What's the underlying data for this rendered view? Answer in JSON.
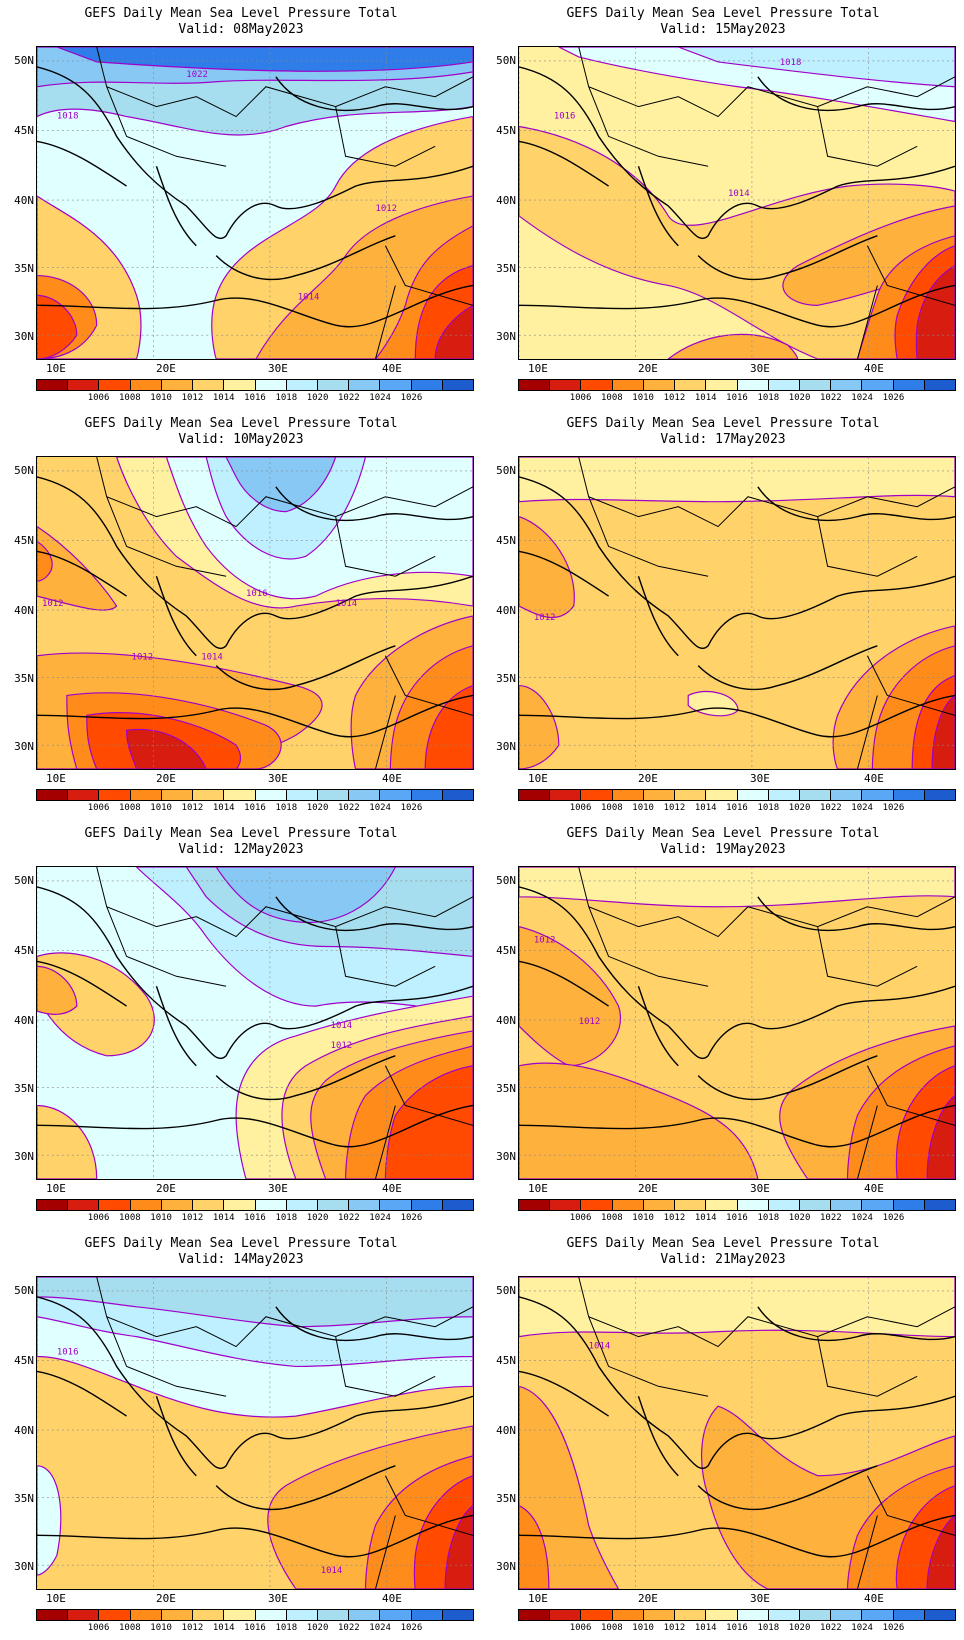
{
  "title_line1": "GEFS Daily Mean Sea Level Pressure Total",
  "panels": [
    {
      "valid": "Valid: 08May2023",
      "label_texts": [
        "1022",
        "1018",
        "1012",
        "1014"
      ]
    },
    {
      "valid": "Valid: 15May2023",
      "label_texts": [
        "1018",
        "1016",
        "1014"
      ]
    },
    {
      "valid": "Valid: 10May2023",
      "label_texts": [
        "1012",
        "1016",
        "1014",
        "1012",
        "1014"
      ]
    },
    {
      "valid": "Valid: 17May2023",
      "label_texts": [
        "1012"
      ]
    },
    {
      "valid": "Valid: 12May2023",
      "label_texts": [
        "1014",
        "1012"
      ]
    },
    {
      "valid": "Valid: 19May2023",
      "label_texts": [
        "1012",
        "1012"
      ]
    },
    {
      "valid": "Valid: 14May2023",
      "label_texts": [
        "1016",
        "1014"
      ]
    },
    {
      "valid": "Valid: 21May2023",
      "label_texts": [
        "1014"
      ]
    }
  ],
  "lat_labels": [
    "50N",
    "45N",
    "40N",
    "35N",
    "30N"
  ],
  "lon_labels": [
    "10E",
    "20E",
    "30E",
    "40E"
  ],
  "colorbar": {
    "colors": [
      "#a50000",
      "#d71d10",
      "#ff4a00",
      "#ff8c1a",
      "#ffb13d",
      "#ffd26a",
      "#fff19f",
      "#e0ffff",
      "#bff0ff",
      "#a6deef",
      "#87c8f5",
      "#5aa8f5",
      "#2e7de8",
      "#1c5ccf"
    ],
    "labels": [
      "1006",
      "1008",
      "1010",
      "1012",
      "1014",
      "1016",
      "1018",
      "1020",
      "1022",
      "1024",
      "1026"
    ]
  }
}
